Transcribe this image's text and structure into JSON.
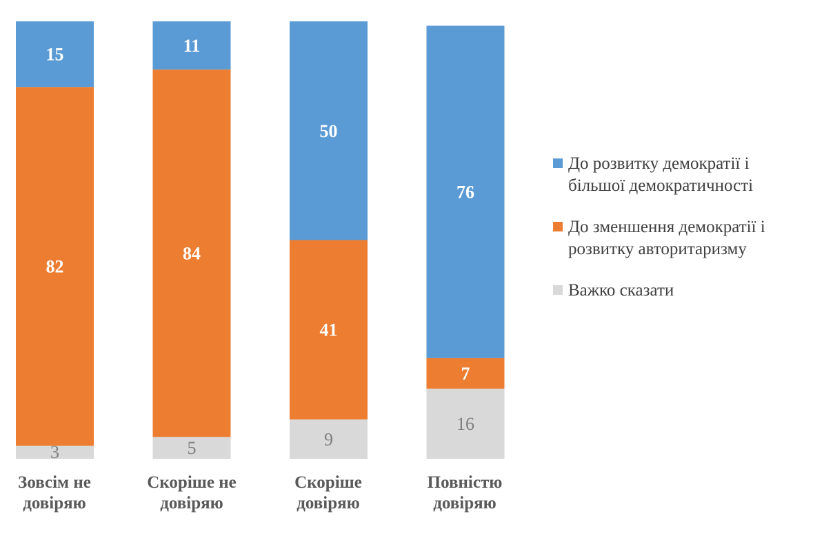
{
  "chart_data": {
    "type": "bar",
    "stacked": true,
    "categories": [
      "Зовсім не довіряю",
      "Скоріше не довіряю",
      "Скоріше довіряю",
      "Повністю довіряю"
    ],
    "series": [
      {
        "name": "Важко сказати",
        "color": "#d9d9d9",
        "label_color": "#7f7f7f",
        "values": [
          3,
          5,
          9,
          16
        ]
      },
      {
        "name": "До зменшення демократії і розвитку авторитаризму",
        "color": "#ed7d31",
        "label_color": "#ffffff",
        "values": [
          82,
          84,
          41,
          7
        ]
      },
      {
        "name": "До розвитку демократії і більшої демократичності",
        "color": "#5b9bd5",
        "label_color": "#ffffff",
        "values": [
          15,
          11,
          50,
          76
        ]
      }
    ],
    "ylim": [
      0,
      100
    ],
    "legend_position": "right",
    "grid": false
  },
  "legend": {
    "items": [
      {
        "label_line1": "До розвитку демократії і",
        "label_line2": "більшої демократичності",
        "color": "#5b9bd5"
      },
      {
        "label_line1": "До зменшення демократії і",
        "label_line2": "розвитку авторитаризму",
        "color": "#ed7d31"
      },
      {
        "label_line1": "Важко сказати",
        "label_line2": "",
        "color": "#d9d9d9"
      }
    ]
  },
  "labels": {
    "cat0_line1": "Зовсім не",
    "cat0_line2": "довіряю",
    "cat1_line1": "Скоріше не",
    "cat1_line2": "довіряю",
    "cat2_line1": "Скоріше",
    "cat2_line2": "довіряю",
    "cat3_line1": "Повністю",
    "cat3_line2": "довіряю"
  }
}
